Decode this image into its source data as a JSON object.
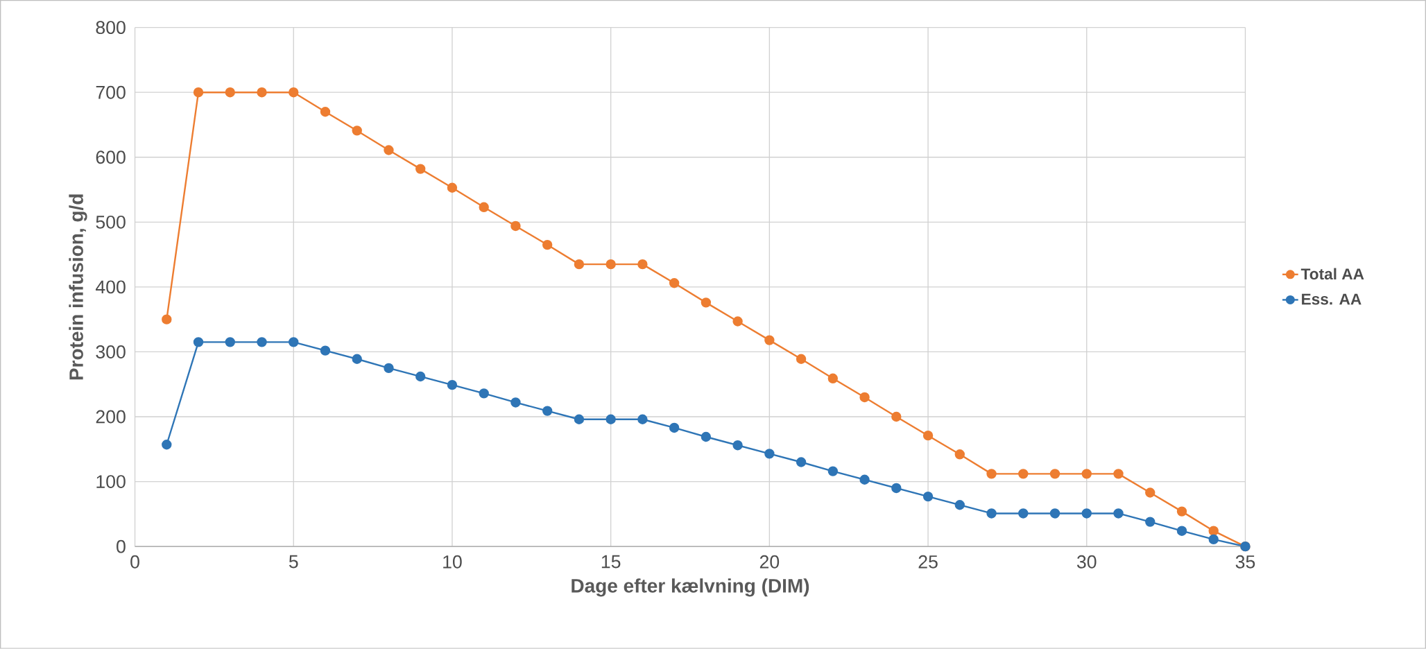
{
  "chart_data": {
    "type": "line",
    "xlabel": "Dage efter kælvning (DIM)",
    "ylabel": "Protein infusion, g/d",
    "x": [
      1,
      2,
      3,
      4,
      5,
      6,
      7,
      8,
      9,
      10,
      11,
      12,
      13,
      14,
      15,
      16,
      17,
      18,
      19,
      20,
      21,
      22,
      23,
      24,
      25,
      26,
      27,
      28,
      29,
      30,
      31,
      32,
      33,
      34,
      35
    ],
    "series": [
      {
        "name": "Total AA",
        "color": "#ed7d31",
        "values": [
          350,
          700,
          700,
          700,
          700,
          670,
          641,
          611,
          582,
          553,
          523,
          494,
          465,
          435,
          435,
          435,
          406,
          376,
          347,
          318,
          289,
          259,
          230,
          200,
          171,
          142,
          112,
          112,
          112,
          112,
          112,
          83,
          54,
          24,
          0
        ]
      },
      {
        "name": "Ess. AA",
        "color": "#2e75b6",
        "values": [
          157,
          315,
          315,
          315,
          315,
          302,
          289,
          275,
          262,
          249,
          236,
          222,
          209,
          196,
          196,
          196,
          183,
          169,
          156,
          143,
          130,
          116,
          103,
          90,
          77,
          64,
          51,
          51,
          51,
          51,
          51,
          38,
          24,
          11,
          0
        ]
      }
    ],
    "xlim": [
      0,
      35
    ],
    "ylim": [
      0,
      800
    ],
    "xticks": [
      0,
      5,
      10,
      15,
      20,
      25,
      30,
      35
    ],
    "yticks": [
      0,
      100,
      200,
      300,
      400,
      500,
      600,
      700,
      800
    ],
    "grid": true,
    "legend": "right",
    "marker": "circle",
    "line_style": "solid"
  }
}
